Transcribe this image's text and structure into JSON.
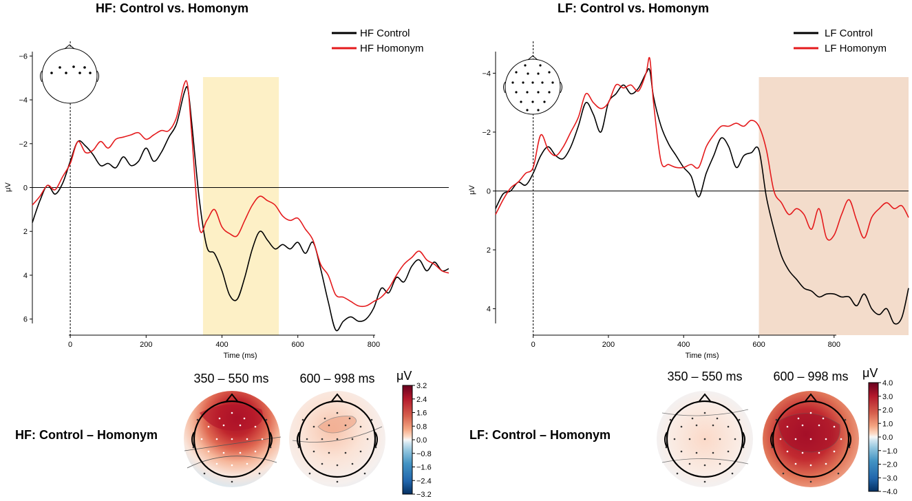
{
  "chart_data": [
    {
      "type": "line",
      "title": "HF: Control vs. Homonym",
      "xlabel": "Time (ms)",
      "ylabel": "μV",
      "xlim": [
        -100,
        998
      ],
      "ylim": [
        6.2,
        -6.2
      ],
      "xticks": [
        "0",
        "200",
        "400",
        "600",
        "800"
      ],
      "xtick_values": [
        0,
        200,
        400,
        600,
        800
      ],
      "yticks": [
        "−6",
        "−4",
        "−2",
        "0",
        "2",
        "4",
        "6"
      ],
      "ytick_values": [
        -6,
        -4,
        -2,
        0,
        2,
        4,
        6
      ],
      "highlight": {
        "x": [
          350,
          550
        ],
        "color": "#fdf0c6"
      },
      "series": [
        {
          "name": "HF Control",
          "color": "#000000",
          "x": [
            -100,
            -80,
            -60,
            -40,
            -20,
            0,
            20,
            40,
            60,
            80,
            100,
            120,
            140,
            160,
            180,
            200,
            220,
            240,
            260,
            280,
            300,
            310,
            320,
            340,
            360,
            380,
            400,
            420,
            440,
            460,
            480,
            500,
            520,
            540,
            560,
            580,
            600,
            620,
            640,
            660,
            680,
            700,
            720,
            740,
            760,
            780,
            800,
            820,
            840,
            860,
            880,
            900,
            920,
            940,
            960,
            980,
            998
          ],
          "values": [
            1.6,
            0.6,
            -0.1,
            0.3,
            -0.2,
            -1.2,
            -2.1,
            -1.9,
            -1.5,
            -1.0,
            -1.1,
            -0.9,
            -1.4,
            -1.0,
            -1.2,
            -1.8,
            -1.2,
            -1.6,
            -2.3,
            -2.9,
            -4.3,
            -4.5,
            -3.0,
            0.5,
            2.7,
            3.0,
            3.8,
            4.9,
            5.1,
            4.1,
            2.8,
            2.0,
            2.4,
            2.8,
            2.6,
            2.8,
            2.5,
            3.0,
            2.5,
            3.7,
            5.2,
            6.5,
            6.1,
            5.9,
            6.1,
            6.0,
            5.5,
            4.6,
            4.8,
            4.1,
            4.3,
            3.6,
            3.3,
            3.8,
            3.4,
            3.8,
            3.7
          ]
        },
        {
          "name": "HF Homonym",
          "color": "#e41a1c",
          "x": [
            -100,
            -80,
            -60,
            -40,
            -20,
            0,
            20,
            40,
            60,
            80,
            100,
            120,
            140,
            160,
            180,
            200,
            220,
            240,
            260,
            280,
            300,
            310,
            320,
            340,
            360,
            380,
            400,
            420,
            440,
            460,
            480,
            500,
            520,
            540,
            560,
            580,
            600,
            620,
            640,
            660,
            680,
            700,
            720,
            740,
            760,
            780,
            800,
            820,
            840,
            860,
            880,
            900,
            920,
            940,
            960,
            980,
            998
          ],
          "values": [
            0.8,
            0.4,
            -0.1,
            0.1,
            -0.5,
            -1.1,
            -2.1,
            -1.6,
            -1.7,
            -2.1,
            -1.8,
            -2.2,
            -2.3,
            -2.4,
            -2.5,
            -2.2,
            -2.4,
            -2.6,
            -2.6,
            -3.2,
            -4.7,
            -4.6,
            -2.5,
            1.8,
            1.5,
            1.0,
            1.8,
            2.1,
            2.2,
            1.5,
            0.8,
            0.4,
            0.6,
            0.8,
            1.3,
            1.5,
            1.4,
            1.9,
            2.4,
            3.5,
            4.0,
            4.9,
            5.0,
            5.2,
            5.4,
            5.4,
            5.2,
            5.0,
            4.6,
            4.0,
            3.5,
            3.2,
            2.9,
            3.3,
            3.5,
            3.8,
            3.9
          ]
        }
      ],
      "legend": {
        "loc": "top-right",
        "entries": [
          "HF Control",
          "HF Homonym"
        ]
      }
    },
    {
      "type": "line",
      "title": "LF: Control vs. Homonym",
      "xlabel": "Time (ms)",
      "ylabel": "μV",
      "xlim": [
        -100,
        998
      ],
      "ylim": [
        4.5,
        -4.5
      ],
      "xticks": [
        "0",
        "200",
        "400",
        "600",
        "800"
      ],
      "xtick_values": [
        0,
        200,
        400,
        600,
        800
      ],
      "yticks": [
        "−4",
        "−2",
        "0",
        "2",
        "4"
      ],
      "ytick_values": [
        -4,
        -2,
        0,
        2,
        4
      ],
      "highlight": {
        "x": [
          600,
          998
        ],
        "color": "#f3dccb"
      },
      "series": [
        {
          "name": "LF Control",
          "color": "#000000",
          "x": [
            -100,
            -80,
            -60,
            -40,
            -20,
            0,
            20,
            40,
            60,
            80,
            100,
            120,
            140,
            160,
            180,
            200,
            220,
            240,
            260,
            280,
            300,
            310,
            320,
            340,
            360,
            380,
            400,
            420,
            440,
            460,
            480,
            500,
            520,
            540,
            560,
            580,
            600,
            620,
            640,
            660,
            680,
            700,
            720,
            740,
            760,
            780,
            800,
            820,
            840,
            860,
            880,
            900,
            920,
            940,
            960,
            980,
            998
          ],
          "values": [
            0.6,
            0.1,
            0.0,
            -0.3,
            -0.2,
            -0.6,
            -1.2,
            -1.5,
            -1.2,
            -1.1,
            -1.5,
            -2.2,
            -3.0,
            -2.6,
            -2.0,
            -3.0,
            -3.3,
            -3.6,
            -3.3,
            -3.5,
            -4.0,
            -4.1,
            -3.2,
            -2.2,
            -1.6,
            -1.2,
            -0.8,
            -0.5,
            0.2,
            -0.6,
            -1.2,
            -1.8,
            -1.5,
            -0.8,
            -1.2,
            -1.3,
            -1.4,
            0.2,
            1.3,
            2.2,
            2.7,
            3.0,
            3.3,
            3.4,
            3.6,
            3.5,
            3.5,
            3.6,
            3.6,
            3.9,
            3.5,
            4.0,
            4.2,
            4.0,
            4.5,
            4.3,
            3.3
          ]
        },
        {
          "name": "LF Homonym",
          "color": "#e41a1c",
          "x": [
            -100,
            -80,
            -60,
            -40,
            -20,
            0,
            20,
            40,
            60,
            80,
            100,
            120,
            140,
            160,
            180,
            200,
            220,
            240,
            260,
            280,
            300,
            310,
            320,
            340,
            360,
            380,
            400,
            420,
            440,
            460,
            480,
            500,
            520,
            540,
            560,
            580,
            600,
            620,
            640,
            660,
            680,
            700,
            720,
            740,
            760,
            780,
            800,
            820,
            840,
            860,
            880,
            900,
            920,
            940,
            960,
            980,
            998
          ],
          "values": [
            0.8,
            0.3,
            -0.1,
            -0.3,
            -0.6,
            -0.8,
            -1.9,
            -1.4,
            -1.2,
            -1.5,
            -2.0,
            -2.5,
            -3.3,
            -3.0,
            -2.8,
            -3.0,
            -3.6,
            -3.5,
            -3.6,
            -3.4,
            -4.0,
            -4.5,
            -3.0,
            -1.0,
            -0.9,
            -0.8,
            -0.8,
            -0.9,
            -0.8,
            -1.5,
            -1.9,
            -2.2,
            -2.2,
            -2.3,
            -2.2,
            -2.4,
            -2.2,
            -1.4,
            0.0,
            0.4,
            0.8,
            0.6,
            0.8,
            1.3,
            0.6,
            1.6,
            1.5,
            0.8,
            0.3,
            1.0,
            1.6,
            0.9,
            0.6,
            0.4,
            0.6,
            0.5,
            0.9
          ]
        }
      ],
      "legend": {
        "loc": "top-right",
        "entries": [
          "LF Control",
          "LF Homonym"
        ]
      }
    },
    {
      "type": "heatmap",
      "title": "HF: Control – Homonym",
      "topomaps": [
        {
          "title": "350 – 550 ms",
          "peak": 2.8,
          "pattern": "frontal-positive"
        },
        {
          "title": "600 – 998 ms",
          "peak": 0.6,
          "pattern": "weak-positive"
        }
      ],
      "colorbar": {
        "unit": "μV",
        "ticks": [
          "3.2",
          "2.4",
          "1.6",
          "0.8",
          "0.0",
          "−0.8",
          "−1.6",
          "−2.4",
          "−3.2"
        ],
        "tick_values": [
          3.2,
          2.4,
          1.6,
          0.8,
          0.0,
          -0.8,
          -1.6,
          -2.4,
          -3.2
        ],
        "range": [
          -3.2,
          3.2
        ]
      }
    },
    {
      "type": "heatmap",
      "title": "LF: Control – Homonym",
      "topomaps": [
        {
          "title": "350 – 550 ms",
          "peak": 0.5,
          "pattern": "weak-positive"
        },
        {
          "title": "600 – 998 ms",
          "peak": 3.6,
          "pattern": "broad-positive"
        }
      ],
      "colorbar": {
        "unit": "μV",
        "ticks": [
          "4.0",
          "3.0",
          "2.0",
          "1.0",
          "0.0",
          "−1.0",
          "−2.0",
          "−3.0",
          "−4.0"
        ],
        "tick_values": [
          4.0,
          3.0,
          2.0,
          1.0,
          0.0,
          -1.0,
          -2.0,
          -3.0,
          -4.0
        ],
        "range": [
          -4.0,
          4.0
        ]
      }
    }
  ]
}
